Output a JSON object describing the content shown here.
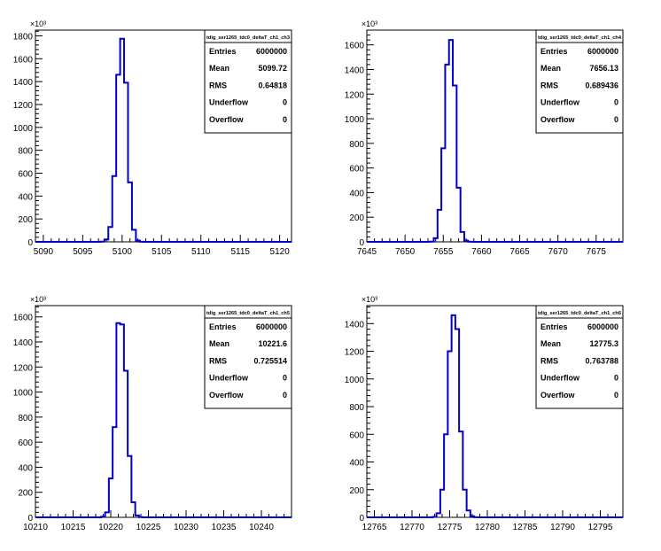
{
  "colors": {
    "line": "#0000cc",
    "frame": "#000000",
    "background": "#ffffff"
  },
  "multiplier_label": "×10³",
  "stats_labels": {
    "entries": "Entries",
    "mean": "Mean",
    "rms": "RMS",
    "underflow": "Underflow",
    "overflow": "Overflow"
  },
  "chart_data": [
    {
      "type": "histogram",
      "title": "tdig_ser1265_tdc0_deltaT_ch1_ch3",
      "stats": {
        "entries": "6000000",
        "mean": "5099.72",
        "rms": "0.64818",
        "underflow": "0",
        "overflow": "0"
      },
      "xlim": [
        5089,
        5121.5
      ],
      "ylim": [
        0,
        1850
      ],
      "xticks": [
        5090,
        5095,
        5100,
        5105,
        5110,
        5115,
        5120
      ],
      "yticks": [
        0,
        200,
        400,
        600,
        800,
        1000,
        1200,
        1400,
        1600,
        1800
      ],
      "y_multiplier": "×10³",
      "bin_width": 0.5,
      "bins": [
        {
          "x": 5097.5,
          "y": 2
        },
        {
          "x": 5098.0,
          "y": 20
        },
        {
          "x": 5098.5,
          "y": 130
        },
        {
          "x": 5099.0,
          "y": 575
        },
        {
          "x": 5099.5,
          "y": 1460
        },
        {
          "x": 5100.0,
          "y": 1775
        },
        {
          "x": 5100.5,
          "y": 1390
        },
        {
          "x": 5101.0,
          "y": 520
        },
        {
          "x": 5101.5,
          "y": 105
        },
        {
          "x": 5102.0,
          "y": 12
        },
        {
          "x": 5102.5,
          "y": 1
        }
      ]
    },
    {
      "type": "histogram",
      "title": "tdig_ser1265_tdc0_deltaT_ch1_ch4",
      "stats": {
        "entries": "6000000",
        "mean": "7656.13",
        "rms": "0.689436",
        "underflow": "0",
        "overflow": "0"
      },
      "xlim": [
        7645,
        7678.5
      ],
      "ylim": [
        0,
        1720
      ],
      "xticks": [
        7645,
        7650,
        7655,
        7660,
        7665,
        7670,
        7675
      ],
      "yticks": [
        0,
        200,
        400,
        600,
        800,
        1000,
        1200,
        1400,
        1600
      ],
      "y_multiplier": "×10³",
      "bin_width": 0.5,
      "bins": [
        {
          "x": 7653.5,
          "y": 2
        },
        {
          "x": 7654.0,
          "y": 30
        },
        {
          "x": 7654.5,
          "y": 260
        },
        {
          "x": 7655.0,
          "y": 760
        },
        {
          "x": 7655.5,
          "y": 1440
        },
        {
          "x": 7656.0,
          "y": 1640
        },
        {
          "x": 7656.5,
          "y": 1270
        },
        {
          "x": 7657.0,
          "y": 440
        },
        {
          "x": 7657.5,
          "y": 80
        },
        {
          "x": 7658.0,
          "y": 10
        },
        {
          "x": 7658.5,
          "y": 1
        }
      ]
    },
    {
      "type": "histogram",
      "title": "tdig_ser1265_tdc0_deltaT_ch1_ch5",
      "stats": {
        "entries": "6000000",
        "mean": "10221.6",
        "rms": "0.725514",
        "underflow": "0",
        "overflow": "0"
      },
      "xlim": [
        10210,
        10244
      ],
      "ylim": [
        0,
        1690
      ],
      "xticks": [
        10210,
        10215,
        10220,
        10225,
        10230,
        10235,
        10240
      ],
      "yticks": [
        0,
        200,
        400,
        600,
        800,
        1000,
        1200,
        1400,
        1600
      ],
      "y_multiplier": "×10³",
      "bin_width": 0.5,
      "bins": [
        {
          "x": 10219.0,
          "y": 5
        },
        {
          "x": 10219.5,
          "y": 40
        },
        {
          "x": 10220.0,
          "y": 310
        },
        {
          "x": 10220.5,
          "y": 720
        },
        {
          "x": 10221.0,
          "y": 1550
        },
        {
          "x": 10221.5,
          "y": 1540
        },
        {
          "x": 10222.0,
          "y": 1170
        },
        {
          "x": 10222.5,
          "y": 490
        },
        {
          "x": 10223.0,
          "y": 120
        },
        {
          "x": 10223.5,
          "y": 15
        },
        {
          "x": 10224.0,
          "y": 2
        }
      ]
    },
    {
      "type": "histogram",
      "title": "tdig_ser1265_tdc0_deltaT_ch1_ch6",
      "stats": {
        "entries": "6000000",
        "mean": "12775.3",
        "rms": "0.763788",
        "underflow": "0",
        "overflow": "0"
      },
      "xlim": [
        12764,
        12798
      ],
      "ylim": [
        0,
        1530
      ],
      "xticks": [
        12765,
        12770,
        12775,
        12780,
        12785,
        12790,
        12795
      ],
      "yticks": [
        0,
        200,
        400,
        600,
        800,
        1000,
        1200,
        1400
      ],
      "y_multiplier": "×10³",
      "bin_width": 0.5,
      "bins": [
        {
          "x": 12773.0,
          "y": 3
        },
        {
          "x": 12773.5,
          "y": 30
        },
        {
          "x": 12774.0,
          "y": 200
        },
        {
          "x": 12774.5,
          "y": 600
        },
        {
          "x": 12775.0,
          "y": 1200
        },
        {
          "x": 12775.5,
          "y": 1460
        },
        {
          "x": 12776.0,
          "y": 1360
        },
        {
          "x": 12776.5,
          "y": 620
        },
        {
          "x": 12777.0,
          "y": 200
        },
        {
          "x": 12777.5,
          "y": 50
        },
        {
          "x": 12778.0,
          "y": 8
        },
        {
          "x": 12778.5,
          "y": 1
        }
      ]
    }
  ]
}
